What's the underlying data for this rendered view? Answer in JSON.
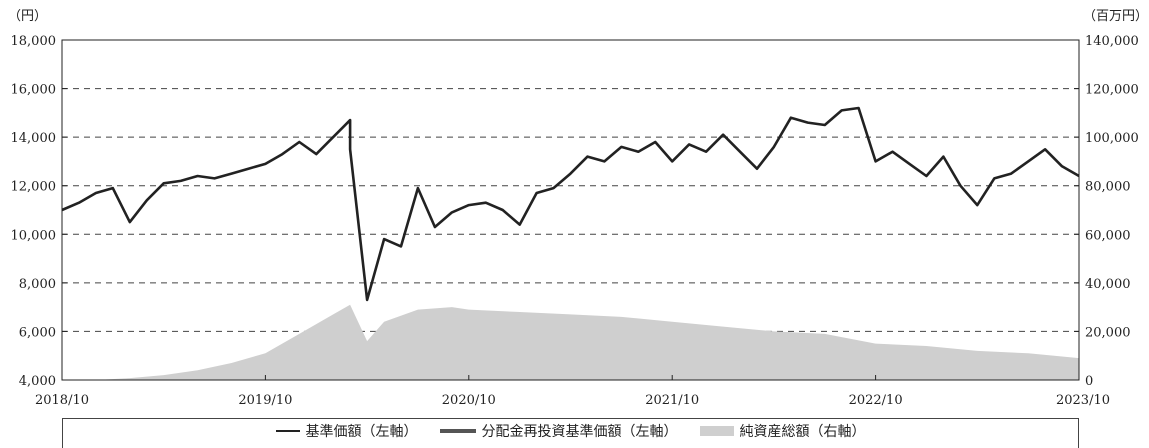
{
  "chart_data": {
    "type": "line",
    "left_unit": "（円）",
    "right_unit": "（百万円）",
    "x_tick_labels": [
      "2018/10",
      "2019/10",
      "2020/10",
      "2021/10",
      "2022/10",
      "2023/10"
    ],
    "x_range": [
      "2018/10",
      "2023/10"
    ],
    "ylim_left": [
      4000,
      18000
    ],
    "ylim_right": [
      0,
      140000
    ],
    "y_ticks_left": [
      "4,000",
      "6,000",
      "8,000",
      "10,000",
      "12,000",
      "14,000",
      "16,000",
      "18,000"
    ],
    "y_ticks_right": [
      "0",
      "20,000",
      "40,000",
      "60,000",
      "80,000",
      "100,000",
      "120,000",
      "140,000"
    ],
    "grid": "horizontal dashed",
    "legend_position": "bottom",
    "series": [
      {
        "name": "基準価額（左軸）",
        "axis": "left",
        "color": "#222222",
        "points": [
          [
            "2018/10",
            11000
          ],
          [
            "2018/11",
            11300
          ],
          [
            "2018/12",
            11700
          ],
          [
            "2019/01",
            11900
          ],
          [
            "2019/02",
            10500
          ],
          [
            "2019/03",
            11400
          ],
          [
            "2019/04",
            12100
          ],
          [
            "2019/05",
            12200
          ],
          [
            "2019/06",
            12400
          ],
          [
            "2019/07",
            12300
          ],
          [
            "2019/08",
            12500
          ],
          [
            "2019/09",
            12700
          ],
          [
            "2019/10",
            12900
          ],
          [
            "2019/11",
            13300
          ],
          [
            "2019/12",
            13800
          ],
          [
            "2020/01",
            13300
          ],
          [
            "2020/02",
            14000
          ],
          [
            "2020/03",
            14700
          ],
          [
            "2020/03",
            13500
          ],
          [
            "2020/04",
            7300
          ],
          [
            "2020/05",
            9800
          ],
          [
            "2020/06",
            9500
          ],
          [
            "2020/07",
            11900
          ],
          [
            "2020/08",
            10300
          ],
          [
            "2020/09",
            10900
          ],
          [
            "2020/10",
            11200
          ],
          [
            "2020/11",
            11300
          ],
          [
            "2020/12",
            11000
          ],
          [
            "2021/01",
            10400
          ],
          [
            "2021/02",
            11700
          ],
          [
            "2021/03",
            11900
          ],
          [
            "2021/04",
            12500
          ],
          [
            "2021/05",
            13200
          ],
          [
            "2021/06",
            13000
          ],
          [
            "2021/07",
            13600
          ],
          [
            "2021/08",
            13400
          ],
          [
            "2021/09",
            13800
          ],
          [
            "2021/10",
            13000
          ],
          [
            "2021/11",
            13700
          ],
          [
            "2021/12",
            13400
          ],
          [
            "2022/01",
            14100
          ],
          [
            "2022/02",
            13400
          ],
          [
            "2022/03",
            12700
          ],
          [
            "2022/04",
            13600
          ],
          [
            "2022/05",
            14800
          ],
          [
            "2022/06",
            14600
          ],
          [
            "2022/07",
            14500
          ],
          [
            "2022/08",
            15100
          ],
          [
            "2022/09",
            15200
          ],
          [
            "2022/10",
            13000
          ],
          [
            "2022/11",
            13400
          ],
          [
            "2022/12",
            12900
          ],
          [
            "2023/01",
            12400
          ],
          [
            "2023/02",
            13200
          ],
          [
            "2023/03",
            12000
          ],
          [
            "2023/04",
            11200
          ],
          [
            "2023/05",
            12300
          ],
          [
            "2023/06",
            12500
          ],
          [
            "2023/07",
            13000
          ],
          [
            "2023/08",
            13500
          ],
          [
            "2023/09",
            12800
          ],
          [
            "2023/10",
            12400
          ]
        ]
      },
      {
        "name": "分配金再投資基準価額（左軸）",
        "axis": "left",
        "color": "#555555",
        "points": [
          [
            "2018/10",
            11000
          ],
          [
            "2019/10",
            12900
          ],
          [
            "2020/03",
            14700
          ],
          [
            "2020/04",
            7300
          ],
          [
            "2020/10",
            11200
          ],
          [
            "2021/10",
            13000
          ],
          [
            "2022/09",
            15200
          ],
          [
            "2022/10",
            13000
          ],
          [
            "2023/04",
            11200
          ],
          [
            "2023/10",
            12400
          ]
        ]
      },
      {
        "name": "純資産総額（右軸）",
        "axis": "right",
        "type": "area",
        "color": "#cfcfcf",
        "points": [
          [
            "2018/10",
            0
          ],
          [
            "2018/12",
            0
          ],
          [
            "2019/02",
            800
          ],
          [
            "2019/04",
            2000
          ],
          [
            "2019/06",
            4000
          ],
          [
            "2019/08",
            7000
          ],
          [
            "2019/10",
            11000
          ],
          [
            "2019/12",
            19000
          ],
          [
            "2020/02",
            27000
          ],
          [
            "2020/03",
            31000
          ],
          [
            "2020/04",
            16000
          ],
          [
            "2020/05",
            24000
          ],
          [
            "2020/07",
            29000
          ],
          [
            "2020/09",
            30000
          ],
          [
            "2020/10",
            29000
          ],
          [
            "2021/01",
            28000
          ],
          [
            "2021/04",
            27000
          ],
          [
            "2021/07",
            26000
          ],
          [
            "2021/10",
            24000
          ],
          [
            "2022/01",
            22000
          ],
          [
            "2022/04",
            20000
          ],
          [
            "2022/07",
            19000
          ],
          [
            "2022/10",
            15000
          ],
          [
            "2023/01",
            14000
          ],
          [
            "2023/04",
            12000
          ],
          [
            "2023/07",
            11000
          ],
          [
            "2023/10",
            9000
          ]
        ]
      }
    ]
  },
  "legend": [
    {
      "label": "基準価額（左軸）",
      "swatch": "line"
    },
    {
      "label": "分配金再投資基準価額（左軸）",
      "swatch": "thick-line"
    },
    {
      "label": "純資産総額（右軸）",
      "swatch": "area"
    }
  ]
}
